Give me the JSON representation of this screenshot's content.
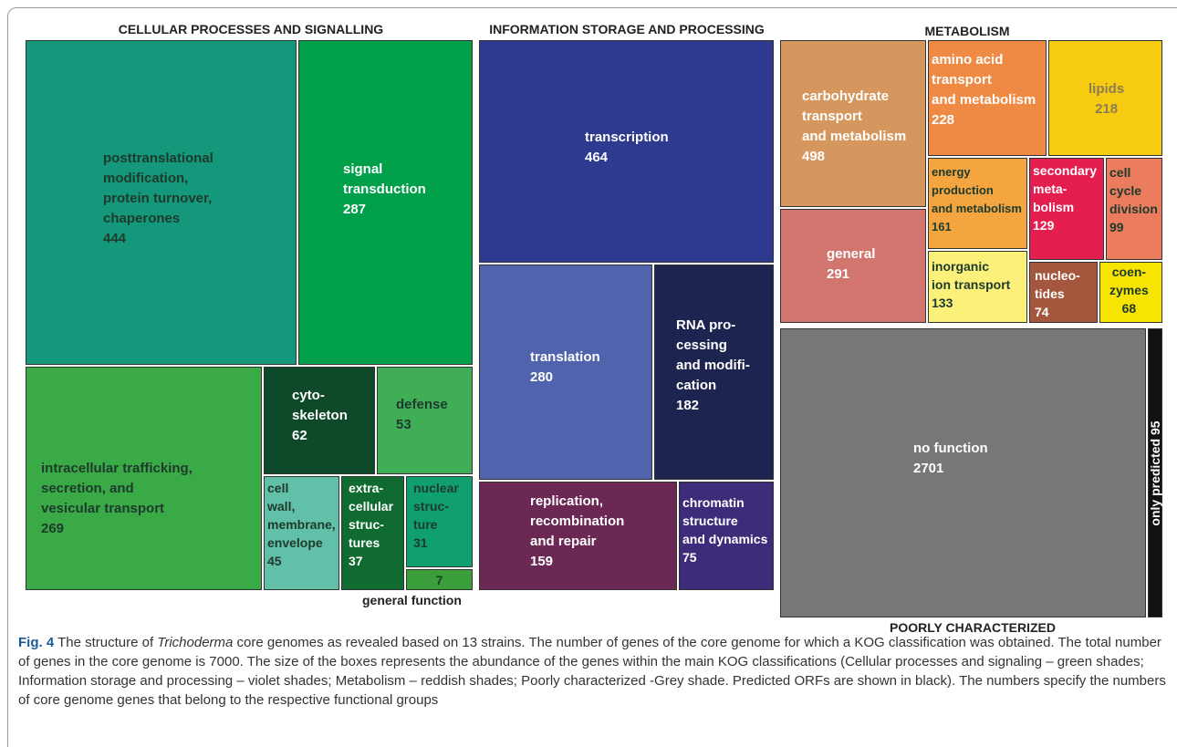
{
  "chart_data": {
    "type": "treemap",
    "groups": [
      {
        "name": "CELLULAR PROCESSES AND SIGNALLING",
        "children": [
          {
            "name": "posttranslational\nmodification,\nprotein turnover,\nchaperones",
            "value": 444,
            "color": "#14977a"
          },
          {
            "name": "signal\ntransduction",
            "value": 287,
            "color": "#00a04a"
          },
          {
            "name": "intracellular trafficking,\nsecretion, and\nvesicular transport",
            "value": 269,
            "color": "#3aaa47"
          },
          {
            "name": "cyto-\nskeleton",
            "value": 62,
            "color": "#0e4a2a"
          },
          {
            "name": "defense",
            "value": 53,
            "color": "#3fae56"
          },
          {
            "name": "cell\nwall,\nmembrane,\nenvelope",
            "value": 45,
            "color": "#63c0a8"
          },
          {
            "name": "extra-\ncellular\nstruc-\ntures",
            "value": 37,
            "color": "#0f6b30"
          },
          {
            "name": "nuclear\nstruc-\nture",
            "value": 31,
            "color": "#10a070"
          },
          {
            "name": "general function",
            "value": 7,
            "color": "#3a9e3a"
          }
        ]
      },
      {
        "name": "INFORMATION STORAGE AND PROCESSING",
        "children": [
          {
            "name": "transcription",
            "value": 464,
            "color": "#2e3a8f"
          },
          {
            "name": "translation",
            "value": 280,
            "color": "#5063ac"
          },
          {
            "name": "RNA pro-\ncessing\nand modifi-\ncation",
            "value": 182,
            "color": "#1e2450"
          },
          {
            "name": "replication,\nrecombination\nand repair",
            "value": 159,
            "color": "#6b2855"
          },
          {
            "name": "chromatin\nstructure\nand dynamics",
            "value": 75,
            "color": "#3c2c7a"
          }
        ]
      },
      {
        "name": "METABOLISM",
        "children": [
          {
            "name": "carbohydrate\ntransport\nand metabolism",
            "value": 498,
            "color": "#d6975e"
          },
          {
            "name": "amino acid\ntransport\nand metabolism",
            "value": 228,
            "color": "#ef8a45"
          },
          {
            "name": "lipids",
            "value": 218,
            "color": "#f6cb10"
          },
          {
            "name": "general",
            "value": 291,
            "color": "#d1756e"
          },
          {
            "name": "energy\nproduction\nand metabolism",
            "value": 161,
            "color": "#f4a540"
          },
          {
            "name": "secondary\nmeta-\nbolism",
            "value": 129,
            "color": "#e41f4f"
          },
          {
            "name": "cell\ncycle\ndivision",
            "value": 99,
            "color": "#ec7c5e"
          },
          {
            "name": "inorganic\nion transport",
            "value": 133,
            "color": "#fbf07a"
          },
          {
            "name": "nucleo-\ntides",
            "value": 74,
            "color": "#a4573d"
          },
          {
            "name": "coen-\nzymes",
            "value": 68,
            "color": "#f7e400"
          }
        ]
      },
      {
        "name": "POORLY CHARACTERIZED",
        "children": [
          {
            "name": "no function",
            "value": 2701,
            "color": "#777777"
          },
          {
            "name": "only predicted",
            "value": 95,
            "color": "#111111"
          }
        ]
      }
    ],
    "caption": {
      "label": "Fig. 4",
      "before": "The structure of ",
      "italic": "Trichoderma",
      "after": " core genomes as revealed based on 13 strains. The number of genes of the core genome for which a KOG classification was obtained. The total number of genes in the core genome is 7000. The size of the boxes represents the abundance of the genes within the main KOG classifications (Cellular processes and signaling – green shades; Information storage and processing – violet shades; Metabolism – reddish shades; Poorly characterized -Grey shade. Predicted ORFs are shown in black). The numbers specify the numbers of core genome genes that belong to the respective functional groups"
    }
  }
}
